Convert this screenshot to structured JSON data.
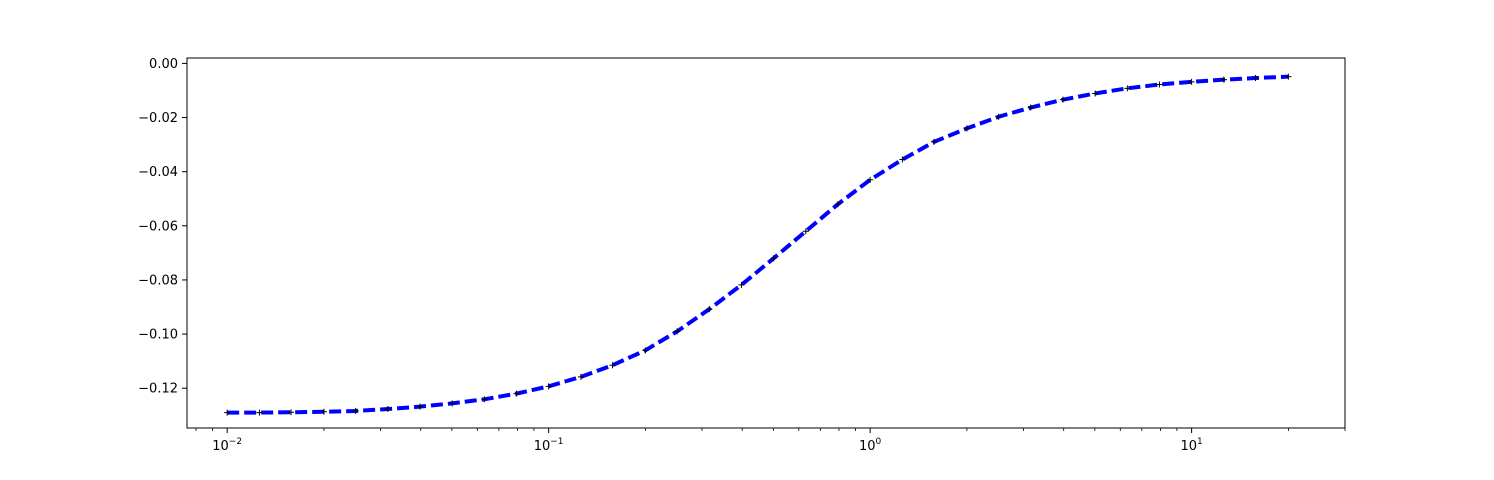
{
  "chart_data": {
    "type": "line",
    "title": "",
    "xlabel": "",
    "ylabel": "",
    "x_scale": "log",
    "xlim": [
      0.0075,
      30
    ],
    "ylim": [
      -0.1347,
      0.002
    ],
    "grid": false,
    "legend": "none",
    "x_ticks": [
      {
        "base": "10",
        "exp": "−2",
        "value": 0.01
      },
      {
        "base": "10",
        "exp": "−1",
        "value": 0.1
      },
      {
        "base": "10",
        "exp": "0",
        "value": 1
      },
      {
        "base": "10",
        "exp": "1",
        "value": 10
      }
    ],
    "y_ticks": [
      {
        "label": "0.00",
        "value": 0.0
      },
      {
        "label": "−0.02",
        "value": -0.02
      },
      {
        "label": "−0.04",
        "value": -0.04
      },
      {
        "label": "−0.06",
        "value": -0.06
      },
      {
        "label": "−0.08",
        "value": -0.08
      },
      {
        "label": "−0.10",
        "value": -0.1
      },
      {
        "label": "−0.12",
        "value": -0.12
      }
    ],
    "series": [
      {
        "color": "#0000ff",
        "line_style": "dashed",
        "marker": "plus",
        "x": [
          0.01,
          0.0126,
          0.0158,
          0.02,
          0.0251,
          0.0316,
          0.0398,
          0.0501,
          0.0631,
          0.0794,
          0.1,
          0.126,
          0.158,
          0.2,
          0.251,
          0.316,
          0.398,
          0.501,
          0.631,
          0.794,
          1.0,
          1.26,
          1.58,
          2.0,
          2.51,
          3.16,
          3.98,
          5.01,
          6.31,
          7.94,
          10.0,
          12.6,
          15.8,
          20.0
        ],
        "y": [
          -0.129,
          -0.129,
          -0.1289,
          -0.1287,
          -0.1284,
          -0.1277,
          -0.1268,
          -0.1256,
          -0.1241,
          -0.122,
          -0.1193,
          -0.1158,
          -0.1115,
          -0.106,
          -0.099,
          -0.0908,
          -0.0818,
          -0.072,
          -0.062,
          -0.052,
          -0.043,
          -0.0355,
          -0.029,
          -0.024,
          -0.0197,
          -0.0163,
          -0.0134,
          -0.0111,
          -0.0092,
          -0.0078,
          -0.0068,
          -0.006,
          -0.0054,
          -0.0049
        ]
      }
    ]
  }
}
